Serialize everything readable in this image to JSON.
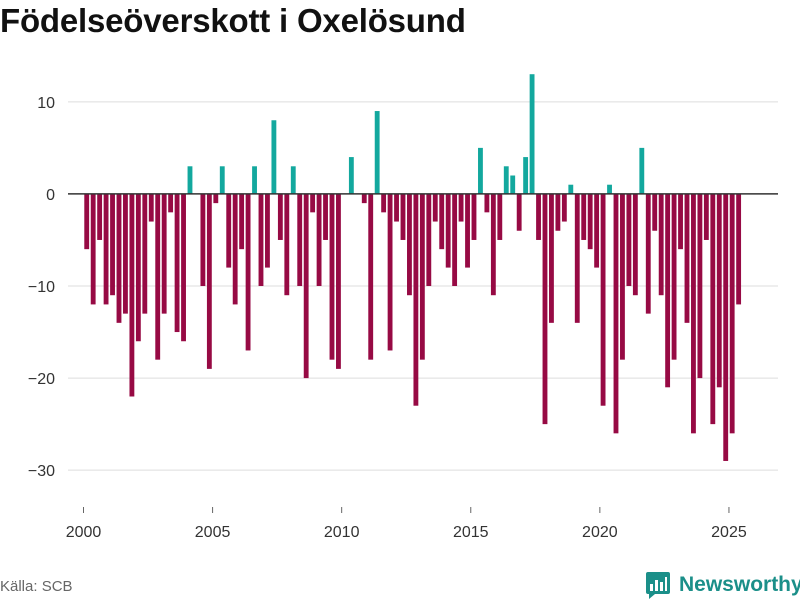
{
  "title": "Födelseöverskott i Oxelösund",
  "source": "Källa: SCB",
  "brand": {
    "name": "Newsworthy",
    "icon": "newsworthy-logo-icon"
  },
  "colors": {
    "positive": "#13a89e",
    "negative": "#970a44",
    "grid": "#dddddd",
    "zero": "#333333"
  },
  "chart_data": {
    "type": "bar",
    "title": "Födelseöverskott i Oxelösund",
    "xlabel": "",
    "ylabel": "",
    "xlim": [
      1999.4,
      2026.9
    ],
    "ylim": [
      -34,
      14
    ],
    "yticks": [
      10,
      0,
      -10,
      -20,
      -30
    ],
    "ytick_labels": [
      "10",
      "0",
      "−10",
      "−20",
      "−30"
    ],
    "xticks": [
      2000,
      2005,
      2010,
      2015,
      2020,
      2025
    ],
    "xtick_labels": [
      "2000",
      "2005",
      "2010",
      "2015",
      "2020",
      "2025"
    ],
    "frequency": "quarterly",
    "start": 2000.125,
    "step": 0.25,
    "grid": true,
    "values": [
      -6,
      -12,
      -5,
      -12,
      -11,
      -14,
      -13,
      -22,
      -16,
      -13,
      -3,
      -18,
      -13,
      -2,
      -15,
      -16,
      3,
      0,
      -10,
      -19,
      -1,
      3,
      -8,
      -12,
      -6,
      -17,
      3,
      -10,
      -8,
      8,
      -5,
      -11,
      3,
      -10,
      -20,
      -2,
      -10,
      -5,
      -18,
      -19,
      0,
      4,
      0,
      -1,
      -18,
      9,
      -2,
      -17,
      -3,
      -5,
      -11,
      -23,
      -18,
      -10,
      -3,
      -6,
      -8,
      -10,
      -3,
      -8,
      -5,
      5,
      -2,
      -11,
      -5,
      3,
      2,
      -4,
      4,
      13,
      -5,
      -25,
      -14,
      -4,
      -3,
      1,
      -14,
      -5,
      -6,
      -8,
      -23,
      1,
      -26,
      -18,
      -10,
      -11,
      5,
      -13,
      -4,
      -11,
      -21,
      -18,
      -6,
      -14,
      -26,
      -20,
      -5,
      -25,
      -21,
      -29,
      -26,
      -12
    ]
  }
}
